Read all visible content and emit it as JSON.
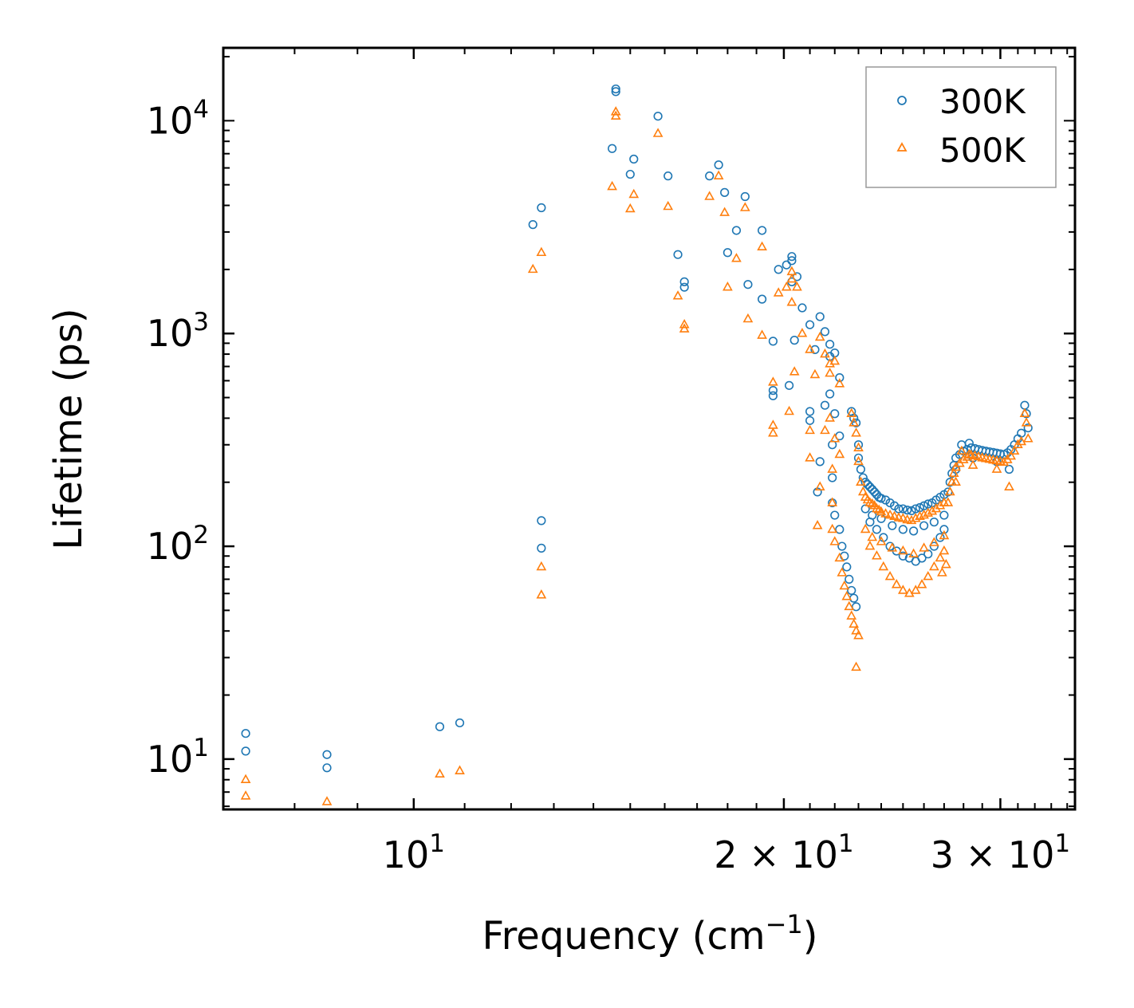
{
  "chart_data": {
    "type": "scatter",
    "title": "",
    "xlabel": "Frequency (cm",
    "xlabel_sup": "−1",
    "xlabel_end": ")",
    "ylabel": "Lifetime (ps)",
    "xscale": "log",
    "yscale": "log",
    "xlim": [
      7.0,
      34.5
    ],
    "ylim": [
      5.8,
      22000
    ],
    "x_ticks": [
      {
        "value": 10,
        "label_base": "10",
        "label_exp": "1"
      },
      {
        "value": 20,
        "label_base": "2 × 10",
        "label_exp": "1"
      },
      {
        "value": 30,
        "label_base": "3 × 10",
        "label_exp": "1"
      }
    ],
    "y_ticks": [
      {
        "value": 10,
        "label_base": "10",
        "label_exp": "1"
      },
      {
        "value": 100,
        "label_base": "10",
        "label_exp": "2"
      },
      {
        "value": 1000,
        "label_base": "10",
        "label_exp": "3"
      },
      {
        "value": 10000,
        "label_base": "10",
        "label_exp": "4"
      }
    ],
    "legend_position": "top-right",
    "series": [
      {
        "name": "300K",
        "marker": "circle",
        "color": "#1f77b4",
        "points": [
          [
            7.3,
            13.2
          ],
          [
            7.3,
            10.9
          ],
          [
            8.5,
            10.5
          ],
          [
            8.5,
            9.1
          ],
          [
            10.5,
            14.2
          ],
          [
            10.9,
            14.8
          ],
          [
            12.5,
            3250
          ],
          [
            12.7,
            3900
          ],
          [
            12.7,
            132
          ],
          [
            12.7,
            98
          ],
          [
            14.5,
            7400
          ],
          [
            14.6,
            14100
          ],
          [
            14.6,
            13700
          ],
          [
            15.0,
            5600
          ],
          [
            15.1,
            6600
          ],
          [
            15.8,
            10500
          ],
          [
            16.1,
            5500
          ],
          [
            16.4,
            2350
          ],
          [
            16.6,
            1750
          ],
          [
            16.6,
            1650
          ],
          [
            17.4,
            5500
          ],
          [
            17.7,
            6200
          ],
          [
            17.9,
            4600
          ],
          [
            18.0,
            2400
          ],
          [
            18.3,
            3050
          ],
          [
            18.6,
            4400
          ],
          [
            18.7,
            1700
          ],
          [
            19.2,
            3050
          ],
          [
            19.2,
            1450
          ],
          [
            19.6,
            920
          ],
          [
            19.6,
            540
          ],
          [
            19.6,
            510
          ],
          [
            19.8,
            2000
          ],
          [
            20.1,
            2100
          ],
          [
            20.3,
            2300
          ],
          [
            20.3,
            2200
          ],
          [
            20.3,
            1750
          ],
          [
            20.5,
            1850
          ],
          [
            20.4,
            930
          ],
          [
            20.2,
            570
          ],
          [
            20.7,
            1320
          ],
          [
            21.0,
            1100
          ],
          [
            21.0,
            430
          ],
          [
            21.0,
            390
          ],
          [
            21.2,
            840
          ],
          [
            21.4,
            1200
          ],
          [
            21.4,
            250
          ],
          [
            21.3,
            180
          ],
          [
            21.6,
            1020
          ],
          [
            21.6,
            460
          ],
          [
            21.8,
            890
          ],
          [
            21.8,
            780
          ],
          [
            21.8,
            520
          ],
          [
            22.0,
            810
          ],
          [
            22.0,
            420
          ],
          [
            22.2,
            620
          ],
          [
            22.2,
            330
          ],
          [
            21.9,
            300
          ],
          [
            21.9,
            210
          ],
          [
            21.9,
            160
          ],
          [
            22.0,
            140
          ],
          [
            22.2,
            120
          ],
          [
            22.3,
            100
          ],
          [
            22.4,
            90
          ],
          [
            22.5,
            80
          ],
          [
            22.6,
            70
          ],
          [
            22.7,
            62
          ],
          [
            22.8,
            57
          ],
          [
            22.9,
            52
          ],
          [
            22.7,
            430
          ],
          [
            22.8,
            400
          ],
          [
            22.9,
            380
          ],
          [
            23.0,
            300
          ],
          [
            23.0,
            260
          ],
          [
            23.1,
            230
          ],
          [
            23.2,
            210
          ],
          [
            23.3,
            200
          ],
          [
            23.4,
            195
          ],
          [
            23.5,
            190
          ],
          [
            23.6,
            185
          ],
          [
            23.7,
            180
          ],
          [
            23.8,
            175
          ],
          [
            23.9,
            170
          ],
          [
            24.0,
            168
          ],
          [
            24.2,
            165
          ],
          [
            24.4,
            160
          ],
          [
            24.6,
            155
          ],
          [
            24.8,
            150
          ],
          [
            25.0,
            150
          ],
          [
            25.2,
            148
          ],
          [
            25.4,
            147
          ],
          [
            25.6,
            150
          ],
          [
            25.8,
            152
          ],
          [
            26.0,
            155
          ],
          [
            26.2,
            158
          ],
          [
            26.4,
            160
          ],
          [
            26.6,
            165
          ],
          [
            26.8,
            170
          ],
          [
            27.0,
            175
          ],
          [
            23.5,
            130
          ],
          [
            23.8,
            120
          ],
          [
            24.1,
            110
          ],
          [
            24.4,
            100
          ],
          [
            24.7,
            95
          ],
          [
            25.0,
            90
          ],
          [
            25.3,
            88
          ],
          [
            25.6,
            85
          ],
          [
            25.9,
            88
          ],
          [
            26.2,
            92
          ],
          [
            26.5,
            100
          ],
          [
            26.8,
            110
          ],
          [
            27.0,
            120
          ],
          [
            23.3,
            150
          ],
          [
            23.6,
            140
          ],
          [
            24.0,
            135
          ],
          [
            24.5,
            125
          ],
          [
            25.0,
            120
          ],
          [
            25.5,
            118
          ],
          [
            26.0,
            125
          ],
          [
            26.5,
            130
          ],
          [
            27.0,
            140
          ],
          [
            27.2,
            180
          ],
          [
            27.3,
            200
          ],
          [
            27.4,
            220
          ],
          [
            27.5,
            240
          ],
          [
            27.6,
            260
          ],
          [
            27.8,
            270
          ],
          [
            28.0,
            280
          ],
          [
            28.2,
            285
          ],
          [
            28.4,
            290
          ],
          [
            28.6,
            288
          ],
          [
            28.8,
            285
          ],
          [
            29.0,
            282
          ],
          [
            29.2,
            280
          ],
          [
            29.4,
            278
          ],
          [
            29.6,
            276
          ],
          [
            29.8,
            274
          ],
          [
            30.0,
            272
          ],
          [
            30.2,
            270
          ],
          [
            30.4,
            275
          ],
          [
            30.6,
            285
          ],
          [
            30.8,
            300
          ],
          [
            31.0,
            320
          ],
          [
            31.2,
            340
          ],
          [
            31.4,
            460
          ],
          [
            31.5,
            420
          ],
          [
            31.6,
            360
          ],
          [
            30.5,
            230
          ],
          [
            29.8,
            250
          ],
          [
            28.5,
            260
          ],
          [
            27.6,
            230
          ],
          [
            27.9,
            300
          ],
          [
            28.3,
            305
          ]
        ]
      },
      {
        "name": "500K",
        "marker": "triangle",
        "color": "#ff7f0e",
        "points": [
          [
            7.3,
            8.0
          ],
          [
            7.3,
            6.7
          ],
          [
            8.5,
            6.3
          ],
          [
            10.5,
            8.5
          ],
          [
            10.9,
            8.8
          ],
          [
            12.5,
            2000
          ],
          [
            12.7,
            2400
          ],
          [
            12.7,
            80
          ],
          [
            12.7,
            59
          ],
          [
            14.5,
            4900
          ],
          [
            14.6,
            11000
          ],
          [
            14.6,
            10500
          ],
          [
            15.0,
            3850
          ],
          [
            15.1,
            4500
          ],
          [
            15.8,
            8700
          ],
          [
            16.1,
            3950
          ],
          [
            16.4,
            1500
          ],
          [
            16.6,
            1100
          ],
          [
            16.6,
            1050
          ],
          [
            17.4,
            4400
          ],
          [
            17.7,
            5500
          ],
          [
            17.9,
            3700
          ],
          [
            18.0,
            1650
          ],
          [
            18.3,
            2250
          ],
          [
            18.6,
            3900
          ],
          [
            18.7,
            1170
          ],
          [
            19.2,
            2550
          ],
          [
            19.2,
            980
          ],
          [
            19.6,
            590
          ],
          [
            19.6,
            370
          ],
          [
            19.6,
            340
          ],
          [
            19.8,
            1550
          ],
          [
            20.1,
            1650
          ],
          [
            20.3,
            1950
          ],
          [
            20.3,
            1800
          ],
          [
            20.3,
            1400
          ],
          [
            20.5,
            1650
          ],
          [
            20.4,
            660
          ],
          [
            20.2,
            430
          ],
          [
            20.7,
            1000
          ],
          [
            21.0,
            840
          ],
          [
            21.0,
            350
          ],
          [
            21.0,
            260
          ],
          [
            21.2,
            640
          ],
          [
            21.4,
            960
          ],
          [
            21.4,
            190
          ],
          [
            21.3,
            125
          ],
          [
            21.6,
            800
          ],
          [
            21.6,
            350
          ],
          [
            21.8,
            720
          ],
          [
            21.8,
            650
          ],
          [
            21.8,
            400
          ],
          [
            22.0,
            740
          ],
          [
            22.0,
            320
          ],
          [
            22.2,
            580
          ],
          [
            22.2,
            270
          ],
          [
            21.9,
            230
          ],
          [
            21.9,
            160
          ],
          [
            21.9,
            120
          ],
          [
            22.0,
            105
          ],
          [
            22.2,
            88
          ],
          [
            22.3,
            75
          ],
          [
            22.4,
            65
          ],
          [
            22.5,
            58
          ],
          [
            22.6,
            52
          ],
          [
            22.7,
            47
          ],
          [
            22.8,
            43
          ],
          [
            22.9,
            40
          ],
          [
            23.0,
            38
          ],
          [
            22.7,
            420
          ],
          [
            22.8,
            380
          ],
          [
            22.9,
            340
          ],
          [
            23.0,
            290
          ],
          [
            23.0,
            250
          ],
          [
            23.1,
            200
          ],
          [
            23.2,
            180
          ],
          [
            23.3,
            170
          ],
          [
            22.9,
            27
          ],
          [
            23.4,
            165
          ],
          [
            23.5,
            160
          ],
          [
            23.6,
            158
          ],
          [
            23.7,
            155
          ],
          [
            23.8,
            150
          ],
          [
            23.9,
            148
          ],
          [
            24.0,
            145
          ],
          [
            24.2,
            142
          ],
          [
            24.4,
            140
          ],
          [
            24.6,
            138
          ],
          [
            24.8,
            136
          ],
          [
            25.0,
            135
          ],
          [
            25.2,
            133
          ],
          [
            25.4,
            132
          ],
          [
            25.6,
            135
          ],
          [
            25.8,
            138
          ],
          [
            26.0,
            140
          ],
          [
            26.2,
            143
          ],
          [
            26.4,
            146
          ],
          [
            26.6,
            150
          ],
          [
            26.8,
            155
          ],
          [
            27.0,
            160
          ],
          [
            23.5,
            100
          ],
          [
            23.8,
            90
          ],
          [
            24.1,
            80
          ],
          [
            24.4,
            72
          ],
          [
            24.7,
            66
          ],
          [
            25.0,
            62
          ],
          [
            25.3,
            60
          ],
          [
            25.6,
            62
          ],
          [
            25.9,
            66
          ],
          [
            26.2,
            72
          ],
          [
            26.5,
            80
          ],
          [
            26.8,
            88
          ],
          [
            27.0,
            95
          ],
          [
            23.3,
            120
          ],
          [
            23.6,
            110
          ],
          [
            24.0,
            105
          ],
          [
            24.5,
            98
          ],
          [
            25.0,
            95
          ],
          [
            25.5,
            92
          ],
          [
            26.0,
            98
          ],
          [
            26.5,
            104
          ],
          [
            27.0,
            112
          ],
          [
            27.2,
            160
          ],
          [
            27.3,
            180
          ],
          [
            27.4,
            200
          ],
          [
            27.5,
            220
          ],
          [
            27.6,
            235
          ],
          [
            27.8,
            245
          ],
          [
            28.0,
            255
          ],
          [
            28.2,
            262
          ],
          [
            28.4,
            268
          ],
          [
            28.6,
            266
          ],
          [
            28.8,
            263
          ],
          [
            29.0,
            260
          ],
          [
            29.2,
            258
          ],
          [
            29.4,
            256
          ],
          [
            29.6,
            254
          ],
          [
            29.8,
            252
          ],
          [
            30.0,
            250
          ],
          [
            30.2,
            248
          ],
          [
            30.4,
            255
          ],
          [
            30.6,
            265
          ],
          [
            30.8,
            280
          ],
          [
            31.0,
            300
          ],
          [
            31.2,
            310
          ],
          [
            31.4,
            420
          ],
          [
            31.5,
            380
          ],
          [
            31.6,
            320
          ],
          [
            30.5,
            190
          ],
          [
            29.8,
            230
          ],
          [
            28.5,
            240
          ],
          [
            27.6,
            200
          ],
          [
            27.9,
            280
          ],
          [
            28.3,
            270
          ],
          [
            27.1,
            82
          ],
          [
            26.9,
            75
          ]
        ]
      }
    ]
  }
}
